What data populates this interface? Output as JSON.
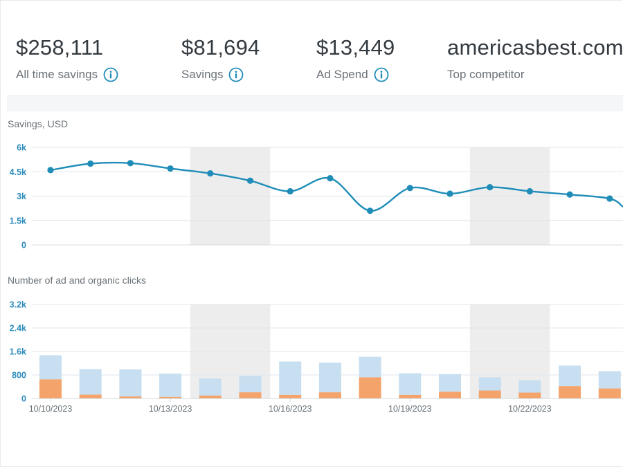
{
  "kpis": [
    {
      "value": "$258,111",
      "label": "All time savings",
      "info": true
    },
    {
      "value": "$81,694",
      "label": "Savings",
      "info": true
    },
    {
      "value": "$13,449",
      "label": "Ad Spend",
      "info": true
    },
    {
      "value": "americasbest.com",
      "label": "Top competitor",
      "info": false
    }
  ],
  "colors": {
    "line": "#1f8db8",
    "ad_clicks": "#f4a36b",
    "organic_clicks": "#c7dff0",
    "weekend_shade": "#ededee",
    "axis_text": "#2f8dbd"
  },
  "chart_data": [
    {
      "type": "line",
      "title": "Savings, USD",
      "x": [
        "10/10/2023",
        "10/11/2023",
        "10/12/2023",
        "10/13/2023",
        "10/14/2023",
        "10/15/2023",
        "10/16/2023",
        "10/17/2023",
        "10/18/2023",
        "10/19/2023",
        "10/20/2023",
        "10/21/2023",
        "10/22/2023",
        "10/23/2023",
        "10/24/2023"
      ],
      "values": [
        4600,
        5000,
        5030,
        4700,
        4400,
        3950,
        3300,
        4100,
        2100,
        3500,
        3150,
        3550,
        3300,
        3100,
        2850
      ],
      "ylim": [
        0,
        6000
      ],
      "yticks": [
        "0",
        "1.5k",
        "3k",
        "4.5k",
        "6k"
      ],
      "ytick_values": [
        0,
        1500,
        3000,
        4500,
        6000
      ],
      "shaded_x": [
        [
          "10/14/2023",
          "10/15/2023"
        ],
        [
          "10/21/2023",
          "10/22/2023"
        ]
      ],
      "grid": true
    },
    {
      "type": "bar",
      "stacked": true,
      "title": "Number of ad and organic clicks",
      "categories": [
        "10/10/2023",
        "10/11/2023",
        "10/12/2023",
        "10/13/2023",
        "10/14/2023",
        "10/15/2023",
        "10/16/2023",
        "10/17/2023",
        "10/18/2023",
        "10/19/2023",
        "10/20/2023",
        "10/21/2023",
        "10/22/2023",
        "10/23/2023",
        "10/24/2023"
      ],
      "series": [
        {
          "values": [
            650,
            130,
            70,
            50,
            100,
            210,
            120,
            210,
            720,
            120,
            230,
            270,
            200,
            420,
            340
          ]
        },
        {
          "values": [
            820,
            870,
            920,
            800,
            580,
            560,
            1140,
            1010,
            700,
            740,
            600,
            450,
            420,
            700,
            590
          ]
        }
      ],
      "ylim": [
        0,
        3200
      ],
      "yticks": [
        "0",
        "800",
        "1.6k",
        "2.4k",
        "3.2k"
      ],
      "ytick_values": [
        0,
        800,
        1600,
        2400,
        3200
      ],
      "xticks": [
        "10/10/2023",
        "10/13/2023",
        "10/16/2023",
        "10/19/2023",
        "10/22/2023"
      ],
      "xtick_positions": [
        "10/10/2023",
        "10/13/2023",
        "10/16/2023",
        "10/19/2023",
        "10/22/2023"
      ],
      "shaded_x": [
        [
          "10/14/2023",
          "10/15/2023"
        ],
        [
          "10/21/2023",
          "10/22/2023"
        ]
      ],
      "grid": true
    }
  ]
}
